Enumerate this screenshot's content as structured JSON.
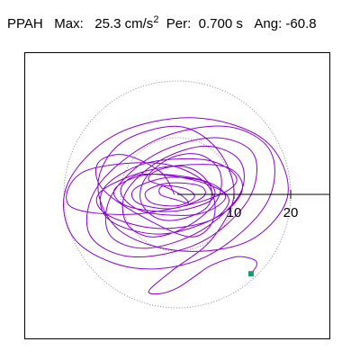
{
  "header": {
    "station": "PPAH",
    "max_label": "Max:",
    "max_value": "25.3 cm/s",
    "max_unit_exp": "2",
    "per_label": "Per:",
    "per_value": "0.700 s",
    "ang_label": "Ang:",
    "ang_value": "-60.8"
  },
  "chart_data": {
    "type": "line",
    "title": "PPAH  Max: 25.3 cm/s2  Per: 0.700 s  Ang: -60.8",
    "xlim": [
      -25,
      25
    ],
    "ylim": [
      -25,
      25
    ],
    "ring_ticks": [
      10,
      20
    ],
    "ring_tick_labels": [
      "10",
      "20"
    ],
    "angle_deg": -60.8,
    "series": [
      {
        "color": "#8a00d4",
        "x": [
          -0.5,
          -3.0,
          -9.5,
          -14.0,
          -13.2,
          -6.0,
          2.5,
          6.5,
          5.0,
          -3.5,
          -16.5,
          -19.0,
          -8.0,
          5.0,
          10.5,
          5.5,
          -5.5,
          -13.0,
          -12.0,
          -3.0,
          7.0,
          11.5,
          8.0,
          -4.0,
          -13.5,
          -12.5,
          -3.5,
          6.0,
          9.0,
          3.0,
          -6.5,
          -10.0,
          -6.0,
          3.5,
          8.5,
          4.5,
          -5.0,
          -11.0,
          -9.0,
          -1.0,
          6.0,
          5.5,
          -1.5,
          -7.5,
          -7.0,
          -1.0,
          4.5,
          4.0,
          -1.5,
          -5.5,
          -4.5,
          0.0,
          3.0,
          1.5,
          -2.5,
          -3.0,
          0.0,
          2.0,
          0.5,
          -2.5,
          -5.0,
          -4.0,
          0.0,
          3.5,
          6.0,
          5.0,
          0.0,
          -4.0,
          -6.5,
          -5.5,
          -1.0,
          4.0,
          7.5,
          7.0,
          2.0,
          -4.5,
          -9.0,
          -9.0,
          -3.0,
          5.0,
          11.0,
          11.0,
          4.0,
          -5.5,
          -12.0,
          -11.5,
          -4.0,
          6.5,
          13.5,
          12.5,
          4.0,
          -8.0,
          -15.5,
          -14.0,
          -4.0,
          8.5,
          16.5,
          15.5,
          5.0,
          -7.5,
          -18.0,
          -19.5,
          -11.0,
          3.0,
          15.5,
          19.5,
          13.0,
          1.0,
          -10.0,
          -14.0,
          -10.0,
          0.0,
          7.0,
          10.0,
          6.0,
          -1.0,
          -5.0,
          -3.0,
          0.0,
          3.0,
          6.0,
          10.5,
          13.5,
          14.0,
          13.0
        ],
        "y": [
          0.0,
          4.0,
          7.0,
          5.5,
          1.0,
          -4.0,
          -7.5,
          -4.0,
          2.0,
          5.5,
          4.0,
          -2.0,
          -3.5,
          -1.0,
          2.5,
          6.0,
          5.5,
          1.0,
          -4.5,
          -7.0,
          -4.0,
          1.0,
          5.0,
          4.5,
          0.5,
          -3.5,
          -6.0,
          -4.5,
          -0.5,
          2.5,
          3.5,
          0.5,
          -3.0,
          -3.5,
          -0.5,
          2.5,
          3.5,
          1.0,
          -2.0,
          -3.0,
          -1.0,
          2.0,
          3.0,
          1.0,
          -1.5,
          -2.5,
          -0.5,
          1.5,
          2.0,
          0.5,
          -1.5,
          -2.0,
          -0.5,
          1.0,
          1.5,
          0.0,
          -1.0,
          -1.5,
          0.0,
          1.5,
          2.5,
          4.0,
          5.0,
          4.0,
          1.0,
          -2.5,
          -4.5,
          -4.0,
          -1.0,
          3.0,
          6.5,
          7.0,
          4.0,
          -1.0,
          -5.5,
          -7.5,
          -5.0,
          0.5,
          6.0,
          8.5,
          6.0,
          0.0,
          -6.5,
          -9.5,
          -7.0,
          0.0,
          7.0,
          10.0,
          7.0,
          -1.0,
          -8.5,
          -11.0,
          -7.0,
          1.5,
          9.5,
          12.0,
          7.5,
          -2.0,
          -11.0,
          -13.0,
          -8.0,
          1.5,
          10.5,
          13.5,
          9.5,
          0.0,
          -8.0,
          -10.0,
          -6.5,
          1.5,
          9.0,
          12.0,
          8.0,
          0.0,
          -8.0,
          -13.5,
          -17.0,
          -17.5,
          -16.5,
          -14.5,
          -12.5,
          -11.0,
          -11.5,
          -12.5,
          -14.0
        ]
      }
    ],
    "end_marker_color": "#1a9a6a",
    "ring_color": "#888888",
    "grid": false
  }
}
